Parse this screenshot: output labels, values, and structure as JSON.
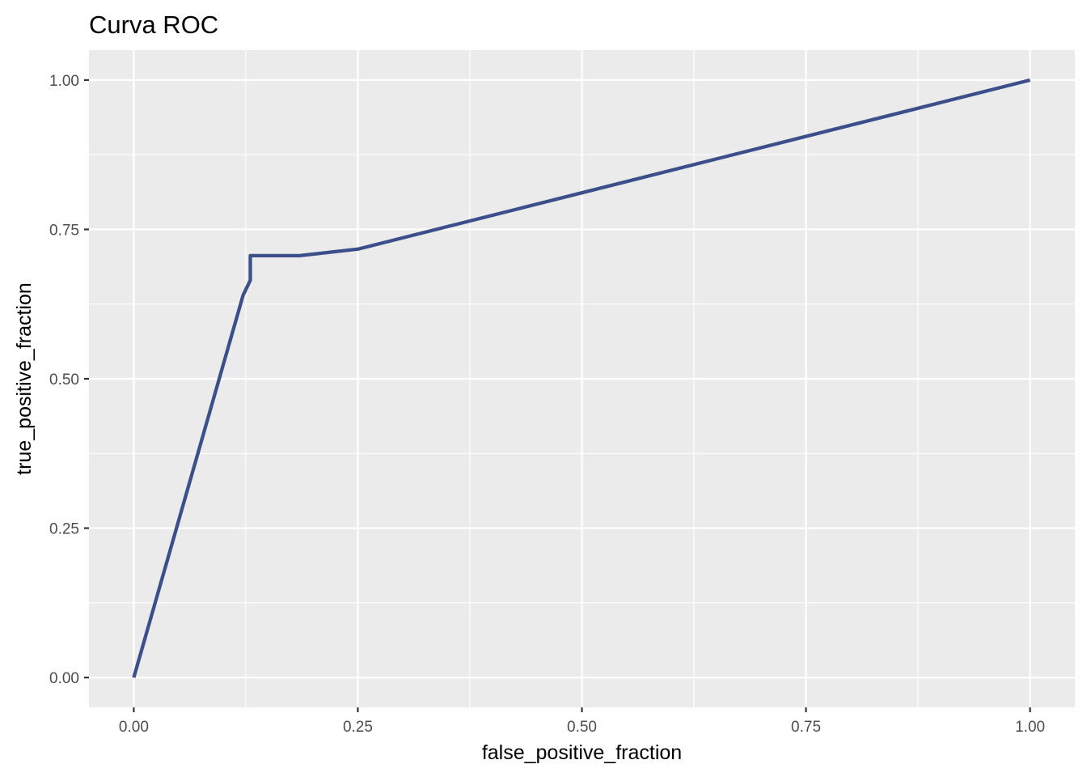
{
  "chart_data": {
    "type": "line",
    "title": "Curva ROC",
    "xlabel": "false_positive_fraction",
    "ylabel": "true_positive_fraction",
    "xlim": [
      -0.05,
      1.05
    ],
    "ylim": [
      -0.05,
      1.05
    ],
    "x_ticks": [
      0,
      0.25,
      0.5,
      0.75,
      1
    ],
    "x_tick_labels": [
      "0.00",
      "0.25",
      "0.50",
      "0.75",
      "1.00"
    ],
    "y_ticks": [
      0,
      0.25,
      0.5,
      0.75,
      1
    ],
    "y_tick_labels": [
      "0.00",
      "0.25",
      "0.50",
      "0.75",
      "1.00"
    ],
    "x_minor_ticks": [
      0.125,
      0.375,
      0.625,
      0.875
    ],
    "y_minor_ticks": [
      0.125,
      0.375,
      0.625,
      0.875
    ],
    "grid": true,
    "panel_background": "#ebebeb",
    "grid_color": "#ffffff",
    "series": [
      {
        "color": "#3b4f8a",
        "x": [
          0.0,
          0.122,
          0.13,
          0.13,
          0.185,
          0.25,
          1.0
        ],
        "y": [
          0.0,
          0.64,
          0.665,
          0.706,
          0.706,
          0.717,
          1.0
        ]
      }
    ]
  }
}
